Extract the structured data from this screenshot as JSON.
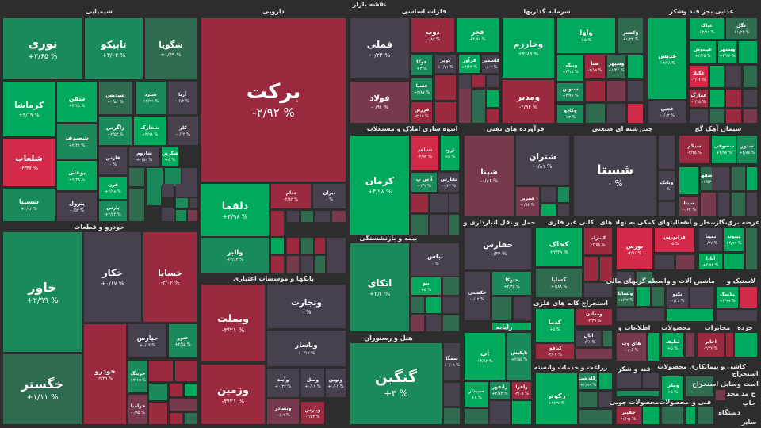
{
  "map_title": "نقشه بازار",
  "colors": {
    "G": "#00a95c",
    "g": "#1b8a5a",
    "d": "#2e6b4f",
    "n": "#48404d",
    "r": "#9b2a40",
    "R": "#d42a4a",
    "m": "#763a4c"
  },
  "sectors": [
    "شیمیایی",
    "دارویی",
    "فلزات اساسی",
    "سرمایه گذاریها",
    "غذایی بجز قند وشکر",
    "خودرو و قطعات",
    "بانکها و موسسات اعتباری",
    "انبوه سازی املاک و مستغلات",
    "فرآورده های نفتی",
    "چندرشته ای صنعتی",
    "سیمان آهک گچ",
    "بیمه و بازنشستگی",
    "هتل و رستوران",
    "حمل و نقل انبارداری و",
    "کانی غیر فلزی",
    "فعالیتهای کمکی به نهاد های",
    "عرضه برق،گاز،بخار و آب",
    "رایانه",
    "استخراج کانه های فلزی",
    "زراعت و خدمات وابسته",
    "واسطه گریهای مالی",
    "ماشین آلات و",
    "لاستیک و",
    "اطلاعات و",
    "محصولات",
    "مخابرات",
    "خرده",
    "قند و شکر",
    "محصولات چوبی",
    "محصولات",
    "بیمانکاری",
    "کاشی و",
    "استخراج",
    "فنی و",
    "محصولات",
    "است وسایل استخراج",
    "ح مد محد",
    "جاپ",
    "دستگاه",
    "سایر"
  ],
  "tiles": [
    {
      "name": "نوری",
      "change": "+۳/۶۵ %",
      "color": "g"
    },
    {
      "name": "تاپیکو",
      "change": "+۳/۰۲ %",
      "color": "g"
    },
    {
      "name": "شگویا",
      "change": "+۱/۴۹ %",
      "color": "d"
    },
    {
      "name": "کرماشا",
      "change": "+۴/۱۹ %",
      "color": "G"
    },
    {
      "name": "شفن",
      "change": "+۴/۳۵ %",
      "color": "G"
    },
    {
      "name": "شصدف",
      "change": "+۲/۴۴ %",
      "color": "g"
    },
    {
      "name": "بوعلی",
      "change": "+۴/۳۸ %",
      "color": "G"
    },
    {
      "name": "پترول",
      "change": "-۰/۵۳ %",
      "color": "n"
    },
    {
      "name": "شلعاب",
      "change": "-۴/۳۷ %",
      "color": "R"
    },
    {
      "name": "شسینا",
      "change": "+۲/۹۲ %",
      "color": "g"
    },
    {
      "name": "شپدیس",
      "change": "+۰/۵۴ %",
      "color": "d"
    },
    {
      "name": "شلرد",
      "change": "+۲/۹۹ %",
      "color": "g"
    },
    {
      "name": "آریا",
      "change": "-۰/۷۲ %",
      "color": "n"
    },
    {
      "name": "زاگرس",
      "change": "+۲/۵۳ %",
      "color": "g"
    },
    {
      "name": "شخارک",
      "change": "+۴/۹۸ %",
      "color": "G"
    },
    {
      "name": "کلر",
      "change": "-۰/۴۴ %",
      "color": "n"
    },
    {
      "name": "فارس",
      "change": "۰ %",
      "color": "n"
    },
    {
      "name": "شاروم",
      "change": "+۰/۵۳ %",
      "color": "n"
    },
    {
      "name": "شکربن",
      "change": "+۵ %",
      "color": "G"
    },
    {
      "name": "قرن",
      "change": "+۴/۹۸ %",
      "color": "G"
    },
    {
      "name": "پارس",
      "change": "+۲/۴۴ %",
      "color": "g"
    },
    {
      "name": "برکت",
      "change": "-۲/۹۲ %",
      "color": "r"
    },
    {
      "name": "دلقما",
      "change": "+۴/۹۸ %",
      "color": "G"
    },
    {
      "name": "ددام",
      "change": "-۲/۸۳ %",
      "color": "r"
    },
    {
      "name": "دیران",
      "change": "۰ %",
      "color": "n"
    },
    {
      "name": "والبر",
      "change": "+۲/۶۴ %",
      "color": "g"
    },
    {
      "name": "خاور",
      "change": "+۲/۹۹ %",
      "color": "g"
    },
    {
      "name": "خگستر",
      "change": "+۱/۱۱ %",
      "color": "d"
    },
    {
      "name": "خکار",
      "change": "+۰/۱۷ %",
      "color": "n"
    },
    {
      "name": "خساپا",
      "change": "-۳/۰۲ %",
      "color": "r"
    },
    {
      "name": "خودرو",
      "change": "-۲/۳۹ %",
      "color": "r"
    },
    {
      "name": "خپارس",
      "change": "+۰/۰۴ %",
      "color": "n"
    },
    {
      "name": "ختور",
      "change": "+۳/۵۵ %",
      "color": "g"
    },
    {
      "name": "خرینگ",
      "change": "+۳/۱۵ %",
      "color": "g"
    },
    {
      "name": "خزامیا",
      "change": "-۰/۹۵ %",
      "color": "m"
    },
    {
      "name": "وبملت",
      "change": "-۳/۲۱ %",
      "color": "r"
    },
    {
      "name": "وزمین",
      "change": "-۳/۲۱ %",
      "color": "r"
    },
    {
      "name": "وتجارت",
      "change": "۰ %",
      "color": "n"
    },
    {
      "name": "وپاسار",
      "change": "+۰/۱۷ %",
      "color": "n"
    },
    {
      "name": "وآیند",
      "change": "+۰/۲۷ %",
      "color": "n"
    },
    {
      "name": "وملل",
      "change": "+۰/۰۴ %",
      "color": "n"
    },
    {
      "name": "ونوین",
      "change": "+۰/۰۴ %",
      "color": "n"
    },
    {
      "name": "وبصادر",
      "change": "-۰/۰۹ %",
      "color": "m"
    },
    {
      "name": "وپارس",
      "change": "-۲/۵۳ %",
      "color": "r"
    },
    {
      "name": "فملی",
      "change": "-۰/۲۴ %",
      "color": "n"
    },
    {
      "name": "فولاد",
      "change": "-۰/۹۱ %",
      "color": "m"
    },
    {
      "name": "ذوب",
      "change": "-۰/۸۳ %",
      "color": "r"
    },
    {
      "name": "فجر",
      "change": "+۴/۹۷ %",
      "color": "G"
    },
    {
      "name": "فوکا",
      "change": "+۳ %",
      "color": "g"
    },
    {
      "name": "کویر",
      "change": "+۰/۷۱ %",
      "color": "n"
    },
    {
      "name": "فرآور",
      "change": "+۴/۶۳ %",
      "color": "G"
    },
    {
      "name": "فاسمین",
      "change": "-۰/۰۴ %",
      "color": "n"
    },
    {
      "name": "فسپا",
      "change": "+۲/۸۷ %",
      "color": "g"
    },
    {
      "name": "فزرین",
      "change": "-۳/۱۵ %",
      "color": "r"
    },
    {
      "name": "وخارزم",
      "change": "+۴/۸۹ %",
      "color": "G"
    },
    {
      "name": "ومدیر",
      "change": "-۲/۹۴ %",
      "color": "r"
    },
    {
      "name": "وآوا",
      "change": "+۵ %",
      "color": "G"
    },
    {
      "name": "وکستر",
      "change": "+۱/۳۲ %",
      "color": "d"
    },
    {
      "name": "ونیکی",
      "change": "+۴/۱۵ %",
      "color": "G"
    },
    {
      "name": "صبا",
      "change": "-۲/۱۹ %",
      "color": "r"
    },
    {
      "name": "وسپهر",
      "change": "+۱/۴۴ %",
      "color": "d"
    },
    {
      "name": "سنوین",
      "change": "+۲/۹۹ %",
      "color": "g"
    },
    {
      "name": "وکادو",
      "change": "+۳ %",
      "color": "g"
    },
    {
      "name": "غدیس",
      "change": "+۴/۲۸ %",
      "color": "G"
    },
    {
      "name": "غچین",
      "change": "-۰/۰۳ %",
      "color": "n"
    },
    {
      "name": "غپاک",
      "change": "+۲/۹۷ %",
      "color": "G"
    },
    {
      "name": "غگل",
      "change": "+۱/۲۳ %",
      "color": "d"
    },
    {
      "name": "غپینوش",
      "change": "+۴/۴۵ %",
      "color": "G"
    },
    {
      "name": "وبشهر",
      "change": "+۴/۶۶ %",
      "color": "G"
    },
    {
      "name": "غگیلا",
      "change": "-۴/۰۴ %",
      "color": "R"
    },
    {
      "name": "غمارگ",
      "change": "-۳/۱۵ %",
      "color": "r"
    },
    {
      "name": "کرمان",
      "change": "+۴/۹۸ %",
      "color": "G"
    },
    {
      "name": "ثشاهد",
      "change": "-۴/۹۲ %",
      "color": "R"
    },
    {
      "name": "ثرود",
      "change": "+۵ %",
      "color": "G"
    },
    {
      "name": "آ س پ",
      "change": "+۳/۱ %",
      "color": "g"
    },
    {
      "name": "ثفارس",
      "change": "-۰/۶۳ %",
      "color": "n"
    },
    {
      "name": "شپنا",
      "change": "-۰/۸۶ %",
      "color": "m"
    },
    {
      "name": "شتران",
      "change": "-۰/۸۱ %",
      "color": "n"
    },
    {
      "name": "شبریز",
      "change": "-۰/۵۶ %",
      "color": "m"
    },
    {
      "name": "شستا",
      "change": "۰ %",
      "color": "n"
    },
    {
      "name": "وبانک",
      "change": "۰ %",
      "color": "n"
    },
    {
      "name": "سیلام",
      "change": "-۳/۲۵ %",
      "color": "r"
    },
    {
      "name": "سصوفی",
      "change": "+۴/۷۷ %",
      "color": "G"
    },
    {
      "name": "سدور",
      "change": "+۳/۸۸ %",
      "color": "g"
    },
    {
      "name": "سصفها",
      "change": "+۱/۵۳ %",
      "color": "d"
    },
    {
      "name": "سیتا",
      "change": "-۰/۶۲ %",
      "color": "m"
    },
    {
      "name": "اتکای",
      "change": "+۲/۱ %",
      "color": "g"
    },
    {
      "name": "بپاس",
      "change": "۰ %",
      "color": "n"
    },
    {
      "name": "بنو",
      "change": "+۵ %",
      "color": "G"
    },
    {
      "name": "گنگین",
      "change": "+۳ %",
      "color": "g"
    },
    {
      "name": "سمگا",
      "change": "+۰/۰۹ %",
      "color": "n"
    },
    {
      "name": "حفارس",
      "change": "-۰/۴۳ %",
      "color": "n"
    },
    {
      "name": "حکشتی",
      "change": "-۰/۰۲ %",
      "color": "n"
    },
    {
      "name": "حتوکا",
      "change": "+۲/۳۵ %",
      "color": "g"
    },
    {
      "name": "آپ",
      "change": "+۴/۸۲ %",
      "color": "G"
    },
    {
      "name": "تاپکیش",
      "change": "+۲/۵۵ %",
      "color": "g"
    },
    {
      "name": "سپیدار",
      "change": "+۵ %",
      "color": "G"
    },
    {
      "name": "رانفور",
      "change": "+۲/۹۲ %",
      "color": "g"
    },
    {
      "name": "رافزا",
      "change": "-۲/۰۸ %",
      "color": "r"
    },
    {
      "name": "کخاک",
      "change": "+۴/۳۹ %",
      "color": "G"
    },
    {
      "name": "کسرام",
      "change": "-۲/۵۸ %",
      "color": "r"
    },
    {
      "name": "کساپا",
      "change": "+۱/۸۸ %",
      "color": "d"
    },
    {
      "name": "کدما",
      "change": "+۵ %",
      "color": "G"
    },
    {
      "name": "ومعادن",
      "change": "-۲/۳۹ %",
      "color": "r"
    },
    {
      "name": "اپال",
      "change": "-۰/۶۱ %",
      "color": "n"
    },
    {
      "name": "کیافق",
      "change": "-۲/۰۴ %",
      "color": "r"
    },
    {
      "name": "زکوثر",
      "change": "+۴/۳۷ %",
      "color": "G"
    },
    {
      "name": "زگلدشت",
      "change": "+۲/۹۹ %",
      "color": "g"
    },
    {
      "name": "بورس",
      "change": "-۴/۹۱ %",
      "color": "R"
    },
    {
      "name": "فرابورس",
      "change": "-۵ %",
      "color": "R"
    },
    {
      "name": "بمپنا",
      "change": "-۰/۲۷ %",
      "color": "n"
    },
    {
      "name": "بپیوند",
      "change": "+۴/۹۹ %",
      "color": "G"
    },
    {
      "name": "آبادا",
      "change": "+۴/۹۴ %",
      "color": "G"
    },
    {
      "name": "ولساپا",
      "change": "+۱/۲۲ %",
      "color": "d"
    },
    {
      "name": "تکنو",
      "change": "-۰/۳۴ %",
      "color": "n"
    },
    {
      "name": "پلاسک",
      "change": "+۴/۹۹ %",
      "color": "G"
    },
    {
      "name": "های وب",
      "change": "-۰/۰۵ %",
      "color": "m"
    },
    {
      "name": "لطیف",
      "change": "+۵ %",
      "color": "G"
    },
    {
      "name": "اخابر",
      "change": "-۲/۴۲ %",
      "color": "r"
    },
    {
      "name": "وملی",
      "change": "+۵ %",
      "color": "G"
    },
    {
      "name": "چفیبر",
      "change": "-۲/۹۱ %",
      "color": "r"
    }
  ]
}
